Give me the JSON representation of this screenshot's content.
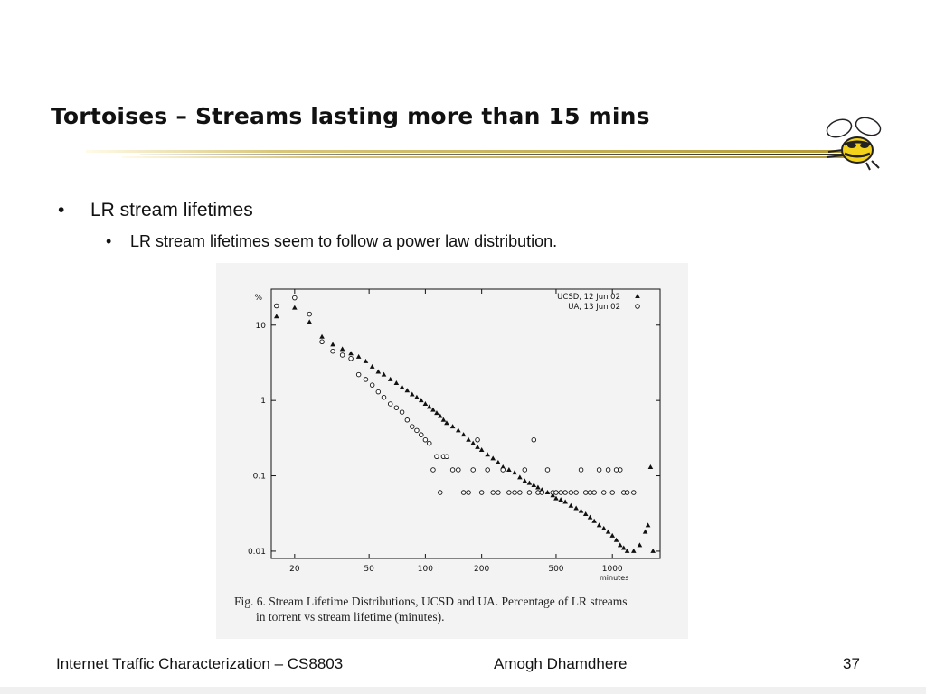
{
  "slide": {
    "title": "Tortoises – Streams lasting more than 15 mins",
    "bullet_level1": "LR stream lifetimes",
    "bullet_level2": "LR stream lifetimes seem to follow a power law distribution.",
    "bullet_glyph": "•"
  },
  "figure": {
    "caption_line1": "Fig. 6.  Stream Lifetime Distributions, UCSD and UA. Percentage of LR streams",
    "caption_line2": "in torrent vs stream lifetime (minutes)."
  },
  "footer": {
    "course": "Internet Traffic Characterization – CS8803",
    "author": "Amogh Dhamdhere",
    "page_number": "37"
  },
  "colors": {
    "title_rule_gold": "#c8b45a",
    "title_rule_dark": "#3a3a3a",
    "mascot_yellow": "#f2d21b",
    "plot_ink": "#111111"
  },
  "icons": {
    "mascot": "yellow-jacket-mascot-icon"
  },
  "chart_data": {
    "type": "scatter",
    "x_scale": "log",
    "y_scale": "log",
    "xlim": [
      15,
      1800
    ],
    "ylim": [
      0.008,
      30
    ],
    "xlabel": "minutes",
    "ylabel": "%",
    "x_ticks": [
      20,
      50,
      100,
      200,
      500,
      1000
    ],
    "x_tick_labels": [
      "20",
      "50",
      "100",
      "200",
      "500",
      "1000"
    ],
    "y_ticks": [
      0.01,
      0.1,
      1,
      10
    ],
    "y_tick_labels": [
      "0.01",
      "0.1",
      "1",
      "10"
    ],
    "legend_placement": "top-right",
    "grid": false,
    "series": [
      {
        "name": "UCSD, 12 Jun 02",
        "marker": "triangle",
        "points": [
          [
            16,
            13
          ],
          [
            20,
            17
          ],
          [
            24,
            11
          ],
          [
            28,
            7
          ],
          [
            32,
            5.5
          ],
          [
            36,
            4.8
          ],
          [
            40,
            4.2
          ],
          [
            44,
            3.8
          ],
          [
            48,
            3.3
          ],
          [
            52,
            2.8
          ],
          [
            56,
            2.4
          ],
          [
            60,
            2.2
          ],
          [
            65,
            1.9
          ],
          [
            70,
            1.7
          ],
          [
            75,
            1.5
          ],
          [
            80,
            1.35
          ],
          [
            85,
            1.2
          ],
          [
            90,
            1.1
          ],
          [
            95,
            1.0
          ],
          [
            100,
            0.9
          ],
          [
            105,
            0.82
          ],
          [
            110,
            0.75
          ],
          [
            115,
            0.68
          ],
          [
            120,
            0.62
          ],
          [
            125,
            0.55
          ],
          [
            130,
            0.5
          ],
          [
            140,
            0.45
          ],
          [
            150,
            0.4
          ],
          [
            160,
            0.35
          ],
          [
            170,
            0.3
          ],
          [
            180,
            0.27
          ],
          [
            190,
            0.24
          ],
          [
            200,
            0.22
          ],
          [
            215,
            0.19
          ],
          [
            230,
            0.17
          ],
          [
            245,
            0.15
          ],
          [
            260,
            0.13
          ],
          [
            280,
            0.12
          ],
          [
            300,
            0.11
          ],
          [
            320,
            0.095
          ],
          [
            340,
            0.085
          ],
          [
            360,
            0.08
          ],
          [
            380,
            0.075
          ],
          [
            400,
            0.07
          ],
          [
            420,
            0.065
          ],
          [
            450,
            0.06
          ],
          [
            480,
            0.055
          ],
          [
            500,
            0.05
          ],
          [
            530,
            0.048
          ],
          [
            560,
            0.045
          ],
          [
            600,
            0.04
          ],
          [
            640,
            0.037
          ],
          [
            680,
            0.034
          ],
          [
            720,
            0.031
          ],
          [
            760,
            0.028
          ],
          [
            800,
            0.025
          ],
          [
            850,
            0.022
          ],
          [
            900,
            0.02
          ],
          [
            950,
            0.018
          ],
          [
            1000,
            0.016
          ],
          [
            1050,
            0.014
          ],
          [
            1100,
            0.012
          ],
          [
            1150,
            0.011
          ],
          [
            1200,
            0.01
          ],
          [
            1300,
            0.01
          ],
          [
            1400,
            0.012
          ],
          [
            1500,
            0.018
          ],
          [
            1550,
            0.022
          ],
          [
            1600,
            0.13
          ],
          [
            1650,
            0.01
          ]
        ]
      },
      {
        "name": "UA, 13 Jun 02",
        "marker": "circle",
        "points": [
          [
            16,
            18
          ],
          [
            20,
            23
          ],
          [
            24,
            14
          ],
          [
            28,
            6
          ],
          [
            32,
            4.5
          ],
          [
            36,
            4.0
          ],
          [
            40,
            3.6
          ],
          [
            44,
            2.2
          ],
          [
            48,
            1.9
          ],
          [
            52,
            1.6
          ],
          [
            56,
            1.3
          ],
          [
            60,
            1.1
          ],
          [
            65,
            0.9
          ],
          [
            70,
            0.8
          ],
          [
            75,
            0.7
          ],
          [
            80,
            0.55
          ],
          [
            85,
            0.45
          ],
          [
            90,
            0.4
          ],
          [
            95,
            0.35
          ],
          [
            100,
            0.3
          ],
          [
            105,
            0.27
          ],
          [
            110,
            0.12
          ],
          [
            115,
            0.18
          ],
          [
            120,
            0.06
          ],
          [
            125,
            0.18
          ],
          [
            130,
            0.18
          ],
          [
            140,
            0.12
          ],
          [
            150,
            0.12
          ],
          [
            160,
            0.06
          ],
          [
            170,
            0.06
          ],
          [
            180,
            0.12
          ],
          [
            190,
            0.3
          ],
          [
            200,
            0.06
          ],
          [
            215,
            0.12
          ],
          [
            230,
            0.06
          ],
          [
            245,
            0.06
          ],
          [
            260,
            0.12
          ],
          [
            280,
            0.06
          ],
          [
            300,
            0.06
          ],
          [
            320,
            0.06
          ],
          [
            340,
            0.12
          ],
          [
            360,
            0.06
          ],
          [
            380,
            0.3
          ],
          [
            400,
            0.06
          ],
          [
            420,
            0.06
          ],
          [
            450,
            0.12
          ],
          [
            480,
            0.06
          ],
          [
            500,
            0.06
          ],
          [
            530,
            0.06
          ],
          [
            560,
            0.06
          ],
          [
            600,
            0.06
          ],
          [
            640,
            0.06
          ],
          [
            680,
            0.12
          ],
          [
            720,
            0.06
          ],
          [
            760,
            0.06
          ],
          [
            800,
            0.06
          ],
          [
            850,
            0.12
          ],
          [
            900,
            0.06
          ],
          [
            950,
            0.12
          ],
          [
            1000,
            0.06
          ],
          [
            1050,
            0.12
          ],
          [
            1100,
            0.12
          ],
          [
            1150,
            0.06
          ],
          [
            1200,
            0.06
          ],
          [
            1300,
            0.06
          ]
        ]
      }
    ]
  }
}
